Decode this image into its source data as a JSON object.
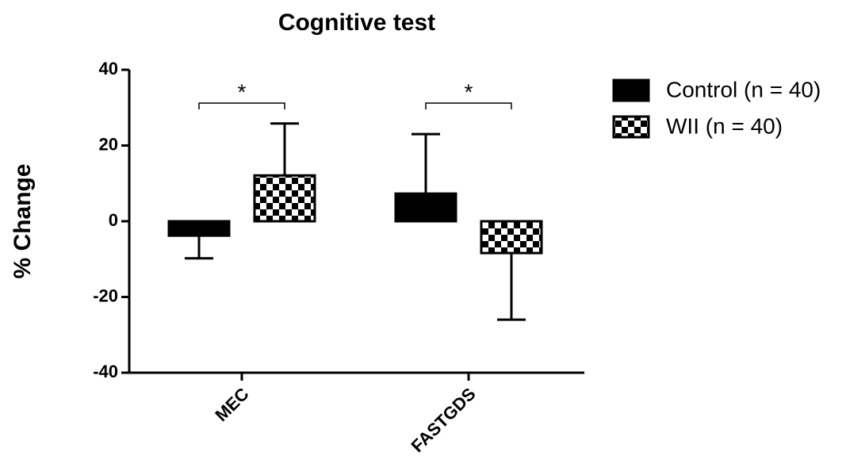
{
  "chart_data": {
    "type": "bar",
    "title": "Cognitive test",
    "ylabel": "% Change",
    "categories": [
      "MEC",
      "FASTGDS"
    ],
    "series": [
      {
        "name": "Control (n = 40)",
        "color": "#000000",
        "fill": "solid",
        "values": [
          -3.8,
          7.3
        ],
        "errors": [
          6,
          15.7
        ]
      },
      {
        "name": "WII (n = 40)",
        "color": "#000000",
        "fill": "checkerboard",
        "values": [
          12.1,
          -8.4
        ],
        "errors": [
          13.7,
          17.6
        ]
      }
    ],
    "significance": [
      "*",
      "*"
    ],
    "ylim": [
      -40,
      40
    ],
    "yticks": [
      -40,
      -20,
      0,
      20,
      40
    ],
    "grid": false,
    "legend": "right"
  }
}
